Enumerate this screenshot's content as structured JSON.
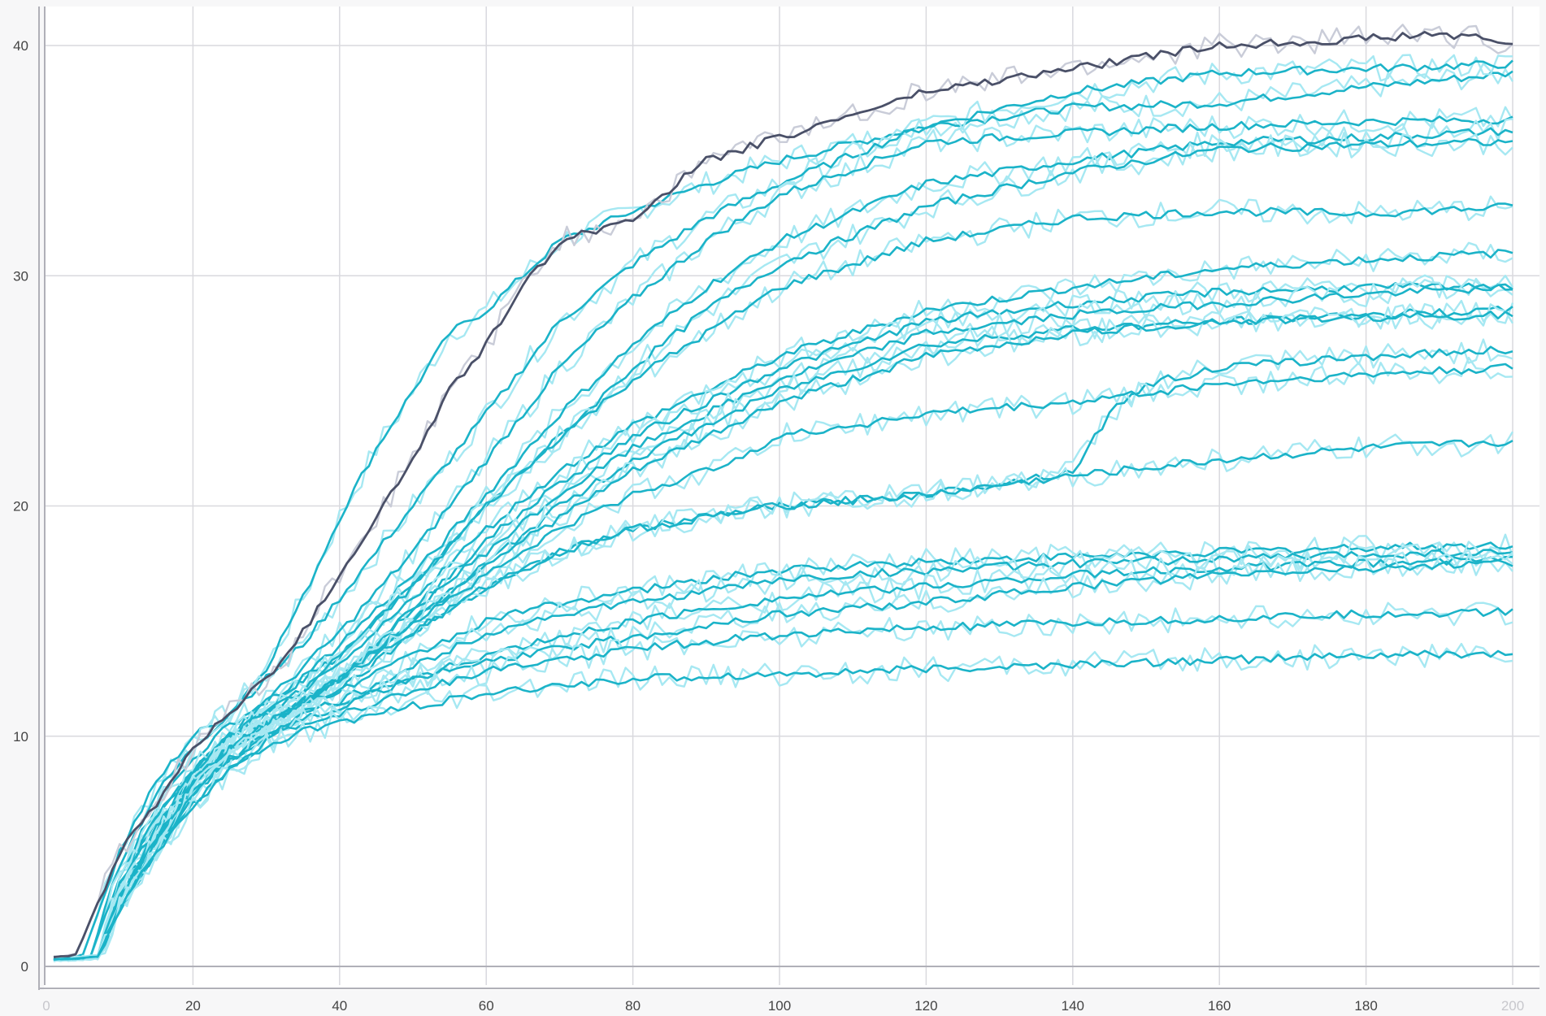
{
  "chart_data": {
    "type": "line",
    "title": "",
    "xlabel": "",
    "ylabel": "",
    "xlim": [
      0,
      200
    ],
    "ylim": [
      0,
      40
    ],
    "grid": true,
    "legend": "none",
    "x_ticks": [
      {
        "value": 0,
        "label": "0",
        "dim": true
      },
      {
        "value": 20,
        "label": "20"
      },
      {
        "value": 40,
        "label": "40"
      },
      {
        "value": 60,
        "label": "60"
      },
      {
        "value": 80,
        "label": "80"
      },
      {
        "value": 100,
        "label": "100"
      },
      {
        "value": 120,
        "label": "120"
      },
      {
        "value": 140,
        "label": "140"
      },
      {
        "value": 160,
        "label": "160"
      },
      {
        "value": 180,
        "label": "180"
      },
      {
        "value": 200,
        "label": "200",
        "dim": true
      }
    ],
    "y_ticks": [
      {
        "value": 0,
        "label": "0"
      },
      {
        "value": 10,
        "label": "10"
      },
      {
        "value": 20,
        "label": "20"
      },
      {
        "value": 30,
        "label": "30"
      },
      {
        "value": 40,
        "label": "40"
      }
    ],
    "colors": {
      "highlight": "#4a5068",
      "highlight_raw": "#c9ccd8",
      "series": "#1bb3c8",
      "series_raw": "#a6e8f2",
      "grid": "#d9d9de",
      "axis": "#b0b0b8"
    },
    "series": [
      {
        "highlight": true,
        "x": [
          1,
          4,
          8,
          10,
          15,
          20,
          25,
          30,
          35,
          40,
          45,
          50,
          55,
          60,
          65,
          70,
          75,
          80,
          90,
          100,
          110,
          120,
          140,
          150,
          160,
          180,
          190,
          200
        ],
        "values": [
          0.4,
          0.5,
          3.5,
          5,
          7,
          9.5,
          11,
          12.5,
          14.5,
          17,
          19.5,
          22,
          25,
          27,
          29.5,
          31.5,
          32,
          32.5,
          35,
          36,
          37,
          38,
          39,
          39.5,
          40,
          40.3,
          40.5,
          40.1
        ]
      },
      {
        "x": [
          1,
          5,
          10,
          15,
          20,
          25,
          30,
          35,
          40,
          45,
          50,
          55,
          60,
          70,
          80,
          90,
          100,
          120,
          140,
          160,
          180,
          200
        ],
        "values": [
          0.3,
          0.5,
          5,
          8,
          10,
          11,
          13,
          16,
          19.5,
          22.5,
          25,
          27.5,
          28.5,
          31.5,
          32.8,
          34,
          35,
          36.5,
          37.3,
          37.5,
          38.2,
          38.8
        ]
      },
      {
        "x": [
          1,
          6,
          10,
          15,
          20,
          25,
          30,
          35,
          40,
          50,
          60,
          70,
          80,
          90,
          100,
          120,
          140,
          160,
          180,
          200
        ],
        "values": [
          0.3,
          0.4,
          4.5,
          7.5,
          9.5,
          11,
          12.5,
          14,
          16,
          20,
          24,
          28,
          30.5,
          32.5,
          34,
          36.5,
          38,
          38.8,
          39,
          39.2
        ]
      },
      {
        "x": [
          1,
          6,
          10,
          15,
          20,
          25,
          30,
          35,
          40,
          50,
          60,
          70,
          80,
          90,
          100,
          120,
          140,
          160,
          180,
          200
        ],
        "values": [
          0.3,
          0.4,
          4,
          7,
          9,
          10.5,
          11.5,
          13,
          14.5,
          18,
          22,
          26,
          29,
          31.5,
          33.5,
          35.8,
          36.2,
          36.5,
          36.7,
          36.8
        ]
      },
      {
        "x": [
          1,
          7,
          10,
          15,
          20,
          25,
          30,
          35,
          40,
          50,
          60,
          70,
          80,
          90,
          100,
          120,
          140,
          160,
          180,
          200
        ],
        "values": [
          0.3,
          0.4,
          3.5,
          6.5,
          8.5,
          10,
          11.5,
          12.5,
          14,
          17,
          20.5,
          24,
          27,
          29.5,
          31.5,
          34,
          35,
          35.8,
          36,
          36.3
        ]
      },
      {
        "x": [
          1,
          7,
          10,
          15,
          20,
          25,
          30,
          35,
          40,
          50,
          60,
          70,
          80,
          90,
          100,
          120,
          140,
          160,
          180,
          200
        ],
        "values": [
          0.3,
          0.4,
          3.5,
          6.5,
          8.5,
          10,
          11,
          12.5,
          13.5,
          16.5,
          20,
          23,
          26,
          28.5,
          30.5,
          33,
          34.5,
          35.5,
          35.7,
          35.8
        ]
      },
      {
        "x": [
          1,
          7,
          10,
          15,
          20,
          25,
          30,
          35,
          40,
          50,
          60,
          70,
          80,
          90,
          100,
          120,
          140,
          160,
          180,
          200
        ],
        "values": [
          0.3,
          0.4,
          3.5,
          6,
          8.5,
          10,
          11,
          12,
          13.5,
          16.5,
          20,
          23,
          25.5,
          27.5,
          29.5,
          31.5,
          32.5,
          32.8,
          32.7,
          33
        ]
      },
      {
        "x": [
          1,
          7,
          10,
          15,
          20,
          25,
          30,
          35,
          40,
          50,
          60,
          70,
          80,
          90,
          100,
          120,
          140,
          160,
          180,
          200
        ],
        "values": [
          0.3,
          0.4,
          3.5,
          6,
          8.5,
          10,
          11,
          12,
          13,
          16,
          19,
          21.5,
          23.5,
          25,
          26.5,
          28.5,
          29.5,
          30.3,
          30.7,
          31
        ]
      },
      {
        "x": [
          1,
          7,
          10,
          15,
          20,
          25,
          30,
          35,
          40,
          50,
          60,
          70,
          80,
          90,
          100,
          120,
          140,
          160,
          180,
          200
        ],
        "values": [
          0.3,
          0.4,
          3,
          6,
          8,
          9.5,
          10.5,
          11.5,
          12.5,
          15.5,
          18.5,
          21,
          23,
          24.5,
          26,
          28,
          28.8,
          29.3,
          29.5,
          29.5
        ]
      },
      {
        "x": [
          1,
          7,
          10,
          15,
          20,
          25,
          30,
          35,
          40,
          50,
          60,
          70,
          80,
          90,
          100,
          120,
          140,
          160,
          180,
          200
        ],
        "values": [
          0.3,
          0.4,
          3,
          6,
          8,
          9.5,
          10.5,
          11.5,
          12.5,
          15.5,
          18,
          20.5,
          22.5,
          24,
          25.5,
          27.5,
          28.3,
          28.8,
          29.2,
          29.5
        ]
      },
      {
        "x": [
          1,
          7,
          10,
          15,
          20,
          25,
          30,
          35,
          40,
          50,
          60,
          70,
          80,
          90,
          100,
          120,
          140,
          160,
          180,
          200
        ],
        "values": [
          0.3,
          0.4,
          3,
          5.5,
          8,
          9.5,
          10.5,
          11.5,
          12.5,
          15,
          17.5,
          20,
          22,
          23.5,
          25,
          27,
          27.7,
          28,
          28.3,
          28.5
        ]
      },
      {
        "x": [
          1,
          7,
          10,
          15,
          20,
          25,
          30,
          35,
          40,
          50,
          60,
          70,
          80,
          90,
          100,
          120,
          140,
          160,
          180,
          200
        ],
        "values": [
          0.3,
          0.4,
          3,
          5.5,
          8,
          9.5,
          10.5,
          11.5,
          12.5,
          15,
          17.5,
          19.5,
          21.5,
          23,
          24.5,
          26.5,
          27.5,
          28,
          28.2,
          28.3
        ]
      },
      {
        "x": [
          1,
          7,
          10,
          15,
          20,
          25,
          30,
          35,
          40,
          50,
          60,
          70,
          80,
          90,
          100,
          120,
          140,
          145,
          150,
          160,
          180,
          200
        ],
        "values": [
          0.3,
          0.4,
          3,
          5.5,
          8,
          9.5,
          10.5,
          11.5,
          12,
          14.5,
          16.5,
          18,
          19,
          19.5,
          20,
          20.5,
          21.5,
          24,
          25.3,
          26,
          26.5,
          26.8
        ]
      },
      {
        "x": [
          1,
          7,
          10,
          15,
          20,
          25,
          30,
          35,
          40,
          50,
          60,
          70,
          80,
          90,
          100,
          120,
          140,
          160,
          180,
          200
        ],
        "values": [
          0.3,
          0.4,
          3,
          5.5,
          8,
          9.5,
          10.5,
          11.5,
          12.5,
          15,
          17,
          19,
          20.5,
          21.5,
          23,
          24,
          24.5,
          25.3,
          25.7,
          26
        ]
      },
      {
        "x": [
          1,
          7,
          10,
          15,
          20,
          25,
          30,
          35,
          40,
          50,
          60,
          70,
          80,
          90,
          100,
          120,
          140,
          160,
          180,
          200
        ],
        "values": [
          0.3,
          0.4,
          3,
          5.5,
          8,
          9.5,
          10.5,
          11.5,
          12.5,
          14.5,
          16.5,
          18,
          19,
          19.5,
          20,
          20.5,
          21.3,
          22,
          22.5,
          22.8
        ]
      },
      {
        "x": [
          1,
          7,
          10,
          15,
          20,
          25,
          30,
          35,
          40,
          50,
          60,
          70,
          80,
          90,
          100,
          120,
          140,
          160,
          180,
          200
        ],
        "values": [
          0.3,
          0.4,
          2.5,
          5.5,
          8,
          9.5,
          10.5,
          11.5,
          12,
          13.5,
          15,
          15.8,
          16.3,
          16.8,
          17.2,
          17.6,
          17.8,
          18,
          18.2,
          18.3
        ]
      },
      {
        "x": [
          1,
          7,
          10,
          15,
          20,
          25,
          30,
          35,
          40,
          50,
          60,
          70,
          80,
          90,
          100,
          120,
          140,
          160,
          180,
          200
        ],
        "values": [
          0.3,
          0.4,
          2.5,
          5,
          7.5,
          9,
          10,
          11,
          11.5,
          13,
          14.5,
          15.3,
          15.8,
          16.3,
          16.8,
          17.2,
          17.5,
          17.7,
          17.9,
          18
        ]
      },
      {
        "x": [
          1,
          7,
          10,
          15,
          20,
          25,
          30,
          35,
          40,
          50,
          60,
          70,
          80,
          90,
          100,
          120,
          140,
          160,
          180,
          200
        ],
        "values": [
          0.3,
          0.4,
          2.5,
          5,
          7.5,
          9,
          10,
          11,
          11.5,
          12.5,
          13.5,
          14.3,
          15,
          15.5,
          16,
          16.5,
          17,
          17.3,
          17.5,
          17.7
        ]
      },
      {
        "x": [
          1,
          7,
          10,
          15,
          20,
          25,
          30,
          35,
          40,
          50,
          60,
          70,
          80,
          90,
          100,
          120,
          140,
          160,
          180,
          200
        ],
        "values": [
          0.3,
          0.4,
          2.5,
          5,
          7.5,
          9,
          10,
          10.8,
          11.3,
          12.5,
          13.2,
          13.8,
          14.3,
          14.8,
          15.3,
          15.8,
          16.5,
          17,
          17.3,
          17.5
        ]
      },
      {
        "x": [
          1,
          7,
          10,
          15,
          20,
          25,
          30,
          35,
          40,
          50,
          60,
          70,
          80,
          90,
          100,
          120,
          140,
          160,
          180,
          200
        ],
        "values": [
          0.3,
          0.4,
          2.5,
          5,
          7,
          8.5,
          9.8,
          10.5,
          11,
          12,
          12.8,
          13.3,
          13.8,
          14.1,
          14.4,
          14.7,
          14.9,
          15.1,
          15.3,
          15.4
        ]
      },
      {
        "x": [
          1,
          7,
          10,
          15,
          20,
          25,
          30,
          35,
          40,
          50,
          60,
          70,
          80,
          90,
          100,
          120,
          140,
          160,
          180,
          200
        ],
        "values": [
          0.3,
          0.4,
          2.5,
          5,
          7,
          8.5,
          9.5,
          10.2,
          10.6,
          11.3,
          11.8,
          12.2,
          12.5,
          12.6,
          12.7,
          12.9,
          13.1,
          13.3,
          13.5,
          13.6
        ]
      }
    ]
  }
}
